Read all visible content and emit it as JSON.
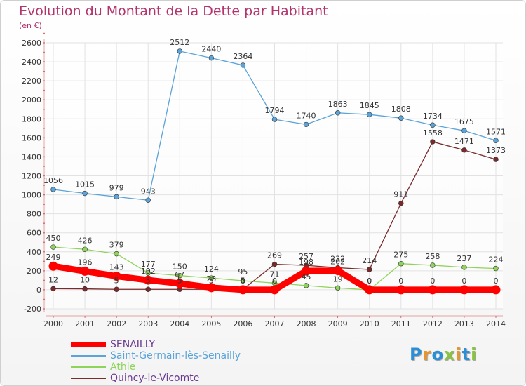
{
  "title": "Evolution du Montant de la Dette par Habitant",
  "subtitle": "(en €)",
  "logo": {
    "text": "Proxiti",
    "colors": [
      "#2a8fd6",
      "#e8962b",
      "#2a8fd6",
      "#8ac43f",
      "#e8962b",
      "#2a8fd6",
      "#8ac43f"
    ]
  },
  "chart_data": {
    "type": "line",
    "x": [
      2000,
      2001,
      2002,
      2003,
      2004,
      2005,
      2006,
      2007,
      2008,
      2009,
      2010,
      2011,
      2012,
      2013,
      2014
    ],
    "ylim": [
      -200,
      2600
    ],
    "yticks": [
      -200,
      0,
      200,
      400,
      600,
      800,
      1000,
      1200,
      1400,
      1600,
      1800,
      2000,
      2200,
      2400,
      2600
    ],
    "grid": true,
    "legend_position": "bottom-left",
    "series": [
      {
        "name": "SENAILLY",
        "color": "#ff0000",
        "values": [
          249,
          196,
          143,
          102,
          67,
          23,
          0,
          0,
          198,
          202,
          0,
          0,
          0,
          0,
          0
        ],
        "labels": [
          "249",
          "196",
          "143",
          "102",
          "67",
          "23",
          "0",
          "0",
          "198",
          "202",
          "0",
          "0",
          "0",
          "0",
          "0"
        ]
      },
      {
        "name": "Saint-Germain-lès-Senailly",
        "color": "#5ba3d9",
        "values": [
          1056,
          1015,
          979,
          943,
          2512,
          2440,
          2364,
          1794,
          1740,
          1863,
          1845,
          1808,
          1734,
          1675,
          1571
        ],
        "labels": [
          "1056",
          "1015",
          "979",
          "943",
          "2512",
          "2440",
          "2364",
          "1794",
          "1740",
          "1863",
          "1845",
          "1808",
          "1734",
          "1675",
          "1571"
        ]
      },
      {
        "name": "Athie",
        "color": "#8fd45a",
        "values": [
          450,
          426,
          379,
          177,
          150,
          124,
          95,
          71,
          45,
          19,
          0,
          275,
          258,
          237,
          224
        ],
        "labels": [
          "450",
          "426",
          "379",
          "177",
          "150",
          "124",
          "95",
          "71",
          "45",
          "19",
          "0",
          "275",
          "258",
          "237",
          "224"
        ]
      },
      {
        "name": "Quincy-le-Vicomte",
        "color": "#7a2a2a",
        "values": [
          12,
          10,
          5,
          5,
          5,
          5,
          5,
          269,
          257,
          232,
          214,
          911,
          1558,
          1471,
          1373
        ],
        "labels": [
          "12",
          "10",
          "5",
          "5",
          "5",
          "5",
          "5",
          "269",
          "257",
          "232",
          "214",
          "911",
          "1558",
          "1471",
          "1373"
        ]
      }
    ]
  }
}
